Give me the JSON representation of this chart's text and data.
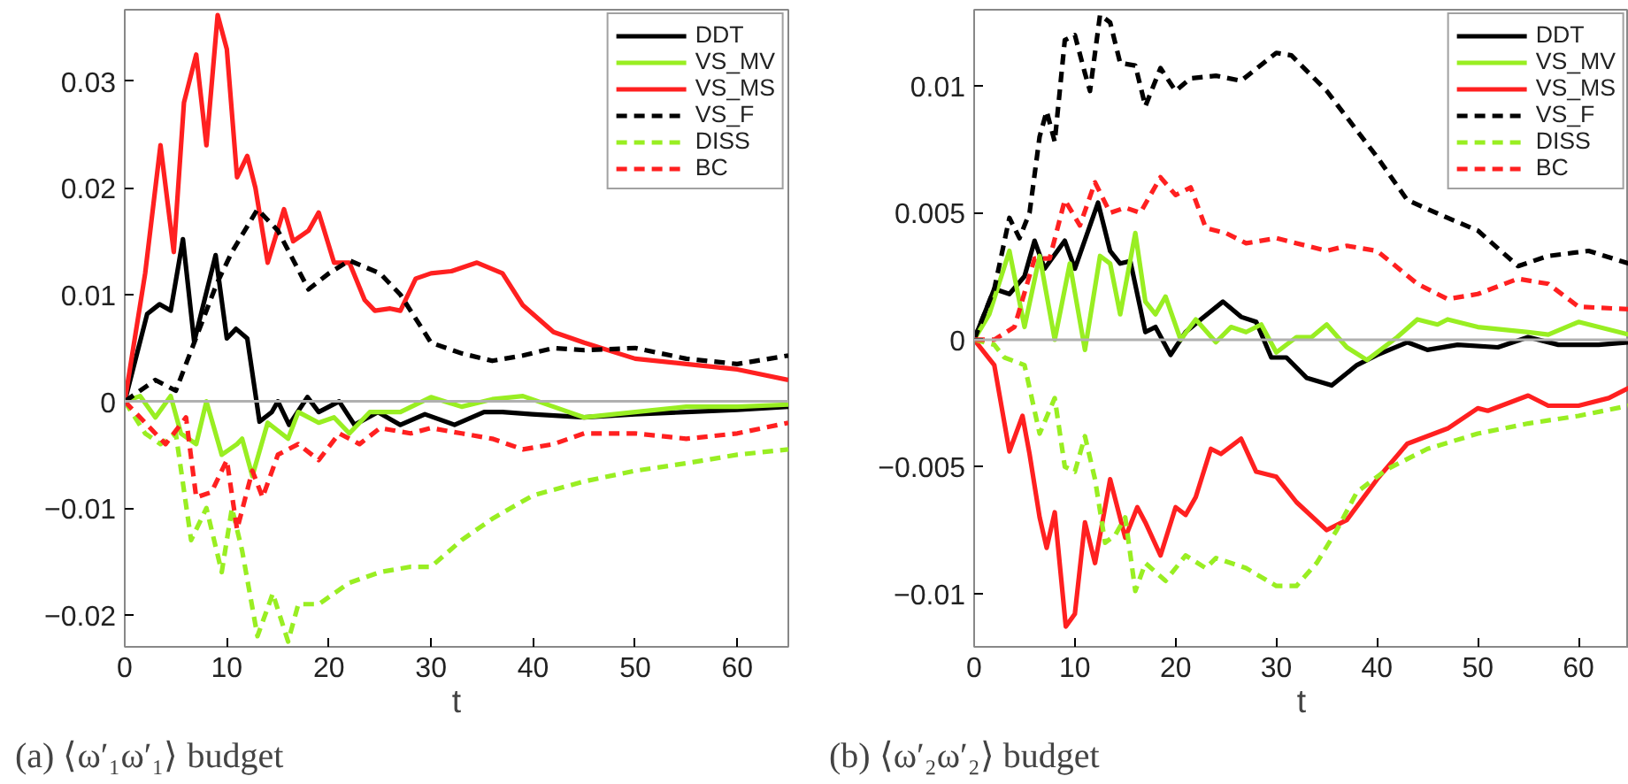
{
  "chart_data": [
    {
      "type": "line",
      "xlabel": "t",
      "xlim": [
        0,
        65
      ],
      "ylim": [
        -0.023,
        0.0367
      ],
      "xticks": [
        0,
        10,
        20,
        30,
        40,
        50,
        60
      ],
      "yticks": [
        {
          "value": -0.02,
          "label": "−0.02"
        },
        {
          "value": -0.01,
          "label": "−0.01"
        },
        0,
        0.01,
        0.02,
        0.03
      ],
      "grid": false,
      "legend": "top right",
      "marker": "none",
      "ref_lines": [
        {
          "axis": "y",
          "value": 0,
          "color": "#b0b0b0",
          "line_style": "solid"
        }
      ],
      "annotations": [
        "(a) ⟨ω′₁ω′₁⟩ budget"
      ],
      "series": [
        {
          "name": "DDT",
          "color": "#000000",
          "line_style": "solid",
          "x": [
            0,
            2.2,
            3.4,
            4.5,
            5.7,
            6.8,
            8.9,
            10,
            10.9,
            12,
            13.2,
            14.4,
            15,
            16.1,
            17.9,
            19,
            21,
            22.5,
            24.8,
            27,
            29.4,
            32.3,
            35.2,
            37,
            39.9,
            45,
            50,
            55,
            60,
            65
          ],
          "values": [
            0,
            0.0082,
            0.0091,
            0.0085,
            0.0152,
            0.0056,
            0.0137,
            0.0059,
            0.0068,
            0.0059,
            -0.0019,
            -0.001,
            0,
            -0.0022,
            0.0004,
            -0.001,
            0,
            -0.0022,
            -0.001,
            -0.0022,
            -0.0012,
            -0.0022,
            -0.001,
            -0.001,
            -0.0012,
            -0.0015,
            -0.0012,
            -0.001,
            -0.0008,
            -0.0005
          ]
        },
        {
          "name": "VS_MV",
          "color": "#99ee22",
          "line_style": "solid",
          "x": [
            0,
            1.5,
            3,
            4.5,
            5.5,
            7,
            8,
            9.5,
            11,
            11.5,
            12.5,
            14,
            16,
            17,
            19,
            20.5,
            22,
            24,
            27,
            30,
            33,
            36,
            39,
            42,
            45,
            50,
            55,
            60,
            65
          ],
          "values": [
            0,
            0.0005,
            -0.0015,
            0.0005,
            -0.003,
            -0.004,
            0,
            -0.005,
            -0.004,
            -0.0035,
            -0.007,
            -0.002,
            -0.0035,
            -0.001,
            -0.002,
            -0.0015,
            -0.003,
            -0.001,
            -0.001,
            0.0004,
            -0.0005,
            0.0002,
            0.0005,
            -0.0005,
            -0.0015,
            -0.001,
            -0.0005,
            -0.0005,
            -0.0003
          ]
        },
        {
          "name": "VS_MS",
          "color": "#ff2020",
          "line_style": "solid",
          "x": [
            0,
            2,
            3.5,
            4.8,
            5.8,
            7,
            8,
            9.1,
            10,
            11,
            12,
            12.8,
            14,
            15.6,
            16.5,
            18,
            19,
            20.5,
            22,
            23.5,
            24.5,
            26,
            27,
            28.5,
            30,
            32,
            34.5,
            37,
            39,
            42,
            45,
            50,
            55,
            60,
            65
          ],
          "values": [
            0,
            0.012,
            0.024,
            0.014,
            0.028,
            0.0325,
            0.024,
            0.0362,
            0.033,
            0.021,
            0.023,
            0.02,
            0.013,
            0.018,
            0.015,
            0.016,
            0.0177,
            0.013,
            0.013,
            0.0095,
            0.0085,
            0.0087,
            0.0085,
            0.0115,
            0.012,
            0.0122,
            0.013,
            0.012,
            0.009,
            0.0065,
            0.0055,
            0.004,
            0.0035,
            0.003,
            0.002
          ]
        },
        {
          "name": "VS_F",
          "color": "#000000",
          "line_style": "dashed",
          "x": [
            0,
            3,
            5,
            7,
            9,
            10.5,
            13,
            15,
            18,
            20,
            22,
            25,
            27,
            30,
            33,
            36,
            39,
            42,
            45,
            50,
            55,
            60,
            65
          ],
          "values": [
            0,
            0.002,
            0.001,
            0.006,
            0.011,
            0.014,
            0.018,
            0.016,
            0.0105,
            0.012,
            0.0132,
            0.012,
            0.01,
            0.0055,
            0.0045,
            0.0038,
            0.0043,
            0.005,
            0.0048,
            0.005,
            0.004,
            0.0035,
            0.0043
          ]
        },
        {
          "name": "DISS",
          "color": "#99ee22",
          "line_style": "dashed",
          "x": [
            0,
            2,
            3.5,
            5,
            6.5,
            8,
            9.5,
            10.5,
            11.5,
            13,
            14.5,
            16,
            17,
            19,
            22,
            25,
            28,
            30,
            33,
            36,
            40,
            45,
            50,
            55,
            60,
            65
          ],
          "values": [
            0,
            -0.003,
            -0.004,
            -0.003,
            -0.013,
            -0.01,
            -0.016,
            -0.01,
            -0.014,
            -0.022,
            -0.018,
            -0.0225,
            -0.019,
            -0.019,
            -0.017,
            -0.016,
            -0.0155,
            -0.0155,
            -0.013,
            -0.011,
            -0.0088,
            -0.0075,
            -0.0065,
            -0.0058,
            -0.005,
            -0.0045
          ]
        },
        {
          "name": "BC",
          "color": "#ff2020",
          "line_style": "dashed",
          "x": [
            0,
            2,
            4,
            6,
            7,
            8.5,
            10,
            11,
            12.5,
            13.5,
            15,
            17,
            19,
            21,
            23,
            25,
            28,
            30,
            33,
            36,
            39,
            42,
            45,
            50,
            55,
            60,
            65
          ],
          "values": [
            0,
            -0.002,
            -0.004,
            -0.0015,
            -0.009,
            -0.0085,
            -0.0055,
            -0.012,
            -0.0065,
            -0.009,
            -0.005,
            -0.004,
            -0.0055,
            -0.003,
            -0.004,
            -0.0025,
            -0.003,
            -0.0025,
            -0.003,
            -0.0035,
            -0.0045,
            -0.004,
            -0.003,
            -0.003,
            -0.0035,
            -0.003,
            -0.002
          ]
        }
      ]
    },
    {
      "type": "line",
      "xlabel": "t",
      "xlim": [
        0,
        65
      ],
      "ylim": [
        -0.0121,
        0.013
      ],
      "xticks": [
        0,
        10,
        20,
        30,
        40,
        50,
        60
      ],
      "yticks": [
        {
          "value": -0.01,
          "label": "−0.01"
        },
        {
          "value": -0.005,
          "label": "−0.005"
        },
        0,
        0.005,
        0.01
      ],
      "grid": false,
      "legend": "top right",
      "marker": "none",
      "ref_lines": [
        {
          "axis": "y",
          "value": 0,
          "color": "#b0b0b0",
          "line_style": "solid"
        }
      ],
      "annotations": [
        "(b) ⟨ω′₂ω′₂⟩ budget"
      ],
      "series": [
        {
          "name": "DDT",
          "color": "#000000",
          "line_style": "solid",
          "x": [
            0,
            2,
            3.5,
            5,
            6,
            7,
            9,
            10,
            12.3,
            13.5,
            14.5,
            15.5,
            17,
            18,
            19.5,
            21,
            22.5,
            24.7,
            26.5,
            28,
            29.5,
            31,
            33,
            35.5,
            38,
            40,
            43,
            45,
            48,
            52,
            55,
            58,
            62,
            65
          ],
          "values": [
            0,
            0.002,
            0.0018,
            0.0025,
            0.0039,
            0.0028,
            0.0039,
            0.0028,
            0.0054,
            0.0035,
            0.003,
            0.0031,
            0.0003,
            0.0005,
            -0.0006,
            0.0003,
            0.0008,
            0.0015,
            0.0009,
            0.0007,
            -0.0007,
            -0.0007,
            -0.0015,
            -0.0018,
            -0.001,
            -0.0006,
            -0.0001,
            -0.0004,
            -0.0002,
            -0.0003,
            0.0001,
            -0.0002,
            -0.0002,
            -0.0001
          ]
        },
        {
          "name": "VS_MV",
          "color": "#99ee22",
          "line_style": "solid",
          "x": [
            0,
            1.5,
            3.5,
            5,
            6.5,
            8,
            9.5,
            11,
            12.5,
            13.5,
            14.5,
            16,
            17,
            18,
            19,
            20.5,
            22,
            24,
            25.5,
            27,
            28.5,
            30,
            32,
            33.5,
            35,
            37,
            39,
            42,
            44,
            46,
            47,
            50,
            55,
            57,
            60,
            65
          ],
          "values": [
            0,
            0.001,
            0.0035,
            0.0005,
            0.0033,
            0,
            0.003,
            -0.0004,
            0.0033,
            0.003,
            0.001,
            0.0042,
            0.0015,
            0.001,
            0.0017,
            0,
            0.0008,
            -0.0001,
            0.0005,
            0.0003,
            0.0006,
            -0.0005,
            0.0001,
            0.0001,
            0.0006,
            -0.0003,
            -0.0008,
            0.0001,
            0.0008,
            0.0006,
            0.0008,
            0.0005,
            0.0003,
            0.0002,
            0.0007,
            0.0002
          ]
        },
        {
          "name": "VS_MS",
          "color": "#ff2020",
          "line_style": "solid",
          "x": [
            0,
            2,
            3.5,
            4.8,
            5.5,
            6.5,
            7.2,
            8,
            9.1,
            10,
            11,
            12,
            13.5,
            15,
            16.2,
            17,
            18.5,
            20,
            21,
            22,
            23.5,
            24.5,
            26.5,
            28,
            30,
            32,
            35,
            37,
            40,
            43,
            47,
            50,
            51,
            55,
            57,
            60,
            63,
            65
          ],
          "values": [
            0,
            -0.001,
            -0.0044,
            -0.003,
            -0.0045,
            -0.007,
            -0.0082,
            -0.0068,
            -0.0113,
            -0.0108,
            -0.0072,
            -0.0088,
            -0.0055,
            -0.0078,
            -0.0066,
            -0.0072,
            -0.0085,
            -0.0066,
            -0.0069,
            -0.0062,
            -0.0043,
            -0.0045,
            -0.0039,
            -0.0052,
            -0.0054,
            -0.0064,
            -0.0075,
            -0.0071,
            -0.0055,
            -0.0041,
            -0.0035,
            -0.0027,
            -0.0028,
            -0.0022,
            -0.0026,
            -0.0026,
            -0.0023,
            -0.0019
          ]
        },
        {
          "name": "VS_F",
          "color": "#000000",
          "line_style": "dashed",
          "x": [
            0,
            2,
            3.5,
            4.5,
            5.5,
            6.5,
            7.2,
            8,
            9,
            10,
            11,
            11.5,
            12.5,
            13.5,
            14.5,
            16,
            17,
            18.5,
            20,
            21.5,
            24,
            26.5,
            30,
            31.5,
            35,
            40,
            43,
            47,
            50,
            54,
            57,
            61,
            65
          ],
          "values": [
            0,
            0.002,
            0.0048,
            0.004,
            0.005,
            0.008,
            0.009,
            0.0078,
            0.0118,
            0.012,
            0.0105,
            0.0098,
            0.0128,
            0.0125,
            0.0109,
            0.0108,
            0.0092,
            0.0107,
            0.0098,
            0.0103,
            0.0104,
            0.0102,
            0.0113,
            0.0112,
            0.0098,
            0.0072,
            0.0055,
            0.0048,
            0.0043,
            0.0029,
            0.0033,
            0.0035,
            0.003
          ]
        },
        {
          "name": "DISS",
          "color": "#99ee22",
          "line_style": "dashed",
          "x": [
            0,
            2,
            3,
            5,
            6.5,
            8,
            9,
            10,
            11,
            12,
            13,
            14,
            15,
            16,
            17,
            19,
            21,
            23,
            24,
            27,
            30,
            32,
            34,
            36,
            38,
            41,
            45,
            50,
            55,
            60,
            65
          ],
          "values": [
            0,
            -0.0002,
            -0.0007,
            -0.001,
            -0.0037,
            -0.0023,
            -0.005,
            -0.0052,
            -0.0038,
            -0.0055,
            -0.008,
            -0.0077,
            -0.007,
            -0.0099,
            -0.0088,
            -0.0095,
            -0.0085,
            -0.009,
            -0.0086,
            -0.009,
            -0.0097,
            -0.0097,
            -0.0088,
            -0.0075,
            -0.006,
            -0.0051,
            -0.0043,
            -0.0037,
            -0.0033,
            -0.003,
            -0.0026
          ]
        },
        {
          "name": "BC",
          "color": "#ff2020",
          "line_style": "dashed",
          "x": [
            0,
            2,
            4,
            6,
            7.5,
            9,
            10.5,
            12,
            13.5,
            15,
            16.5,
            18.5,
            20,
            21.5,
            23,
            25,
            27,
            30,
            33,
            35,
            37,
            40,
            44,
            47,
            50,
            54,
            57,
            60,
            65
          ],
          "values": [
            0,
            0,
            0.0005,
            0.0032,
            0.0032,
            0.0055,
            0.0045,
            0.0062,
            0.005,
            0.0052,
            0.005,
            0.0064,
            0.0057,
            0.006,
            0.0044,
            0.0042,
            0.0038,
            0.004,
            0.0037,
            0.0035,
            0.0037,
            0.0035,
            0.0022,
            0.0016,
            0.0018,
            0.0024,
            0.0022,
            0.0013,
            0.0012
          ]
        }
      ]
    }
  ]
}
